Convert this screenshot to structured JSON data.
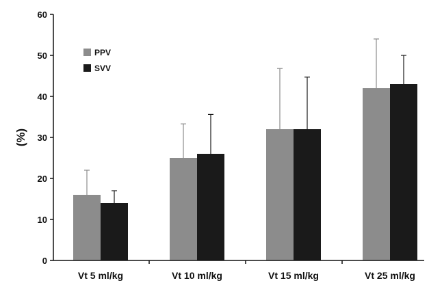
{
  "chart_data": {
    "type": "bar",
    "title": "",
    "xlabel": "",
    "ylabel": "(%)",
    "ylim": [
      0,
      60
    ],
    "yticks": [
      0,
      10,
      20,
      30,
      40,
      50,
      60
    ],
    "grid": false,
    "legend_position": "top-left",
    "categories": [
      "Vt 5 ml/kg",
      "Vt 10 ml/kg",
      "Vt 15 ml/kg",
      "Vt 25 ml/kg"
    ],
    "series": [
      {
        "name": "PPV",
        "color": "#8c8c8c",
        "values": [
          16,
          25,
          32,
          42
        ],
        "error_upper": [
          22,
          33.3,
          46.8,
          54
        ]
      },
      {
        "name": "SVV",
        "color": "#1a1a1a",
        "values": [
          14,
          26,
          32,
          43
        ],
        "error_upper": [
          17,
          35.6,
          44.7,
          50
        ]
      }
    ]
  }
}
